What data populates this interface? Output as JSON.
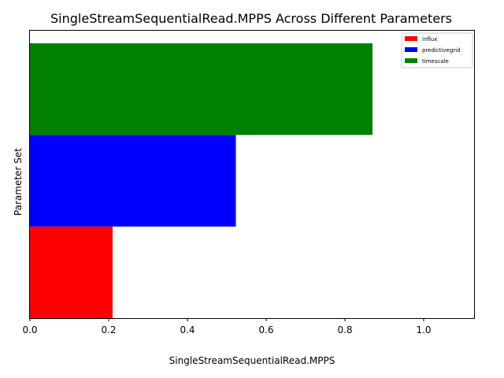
{
  "chart_data": {
    "type": "bar",
    "orientation": "horizontal",
    "title": "SingleStreamSequentialRead.MPPS Across Different Parameters",
    "xlabel": "SingleStreamSequentialRead.MPPS",
    "ylabel": "Parameter Set",
    "xlim": [
      0,
      1.13
    ],
    "xticks": [
      "0.0",
      "0.2",
      "0.4",
      "0.6",
      "0.8",
      "1.0"
    ],
    "legend_position": "top-right",
    "grid": false,
    "series": [
      {
        "name": "influx",
        "value": 0.21,
        "color": "#ff0000"
      },
      {
        "name": "predictivegrid",
        "value": 0.523,
        "color": "#0000ff"
      },
      {
        "name": "timescale",
        "value": 0.87,
        "color": "#008000"
      }
    ]
  }
}
